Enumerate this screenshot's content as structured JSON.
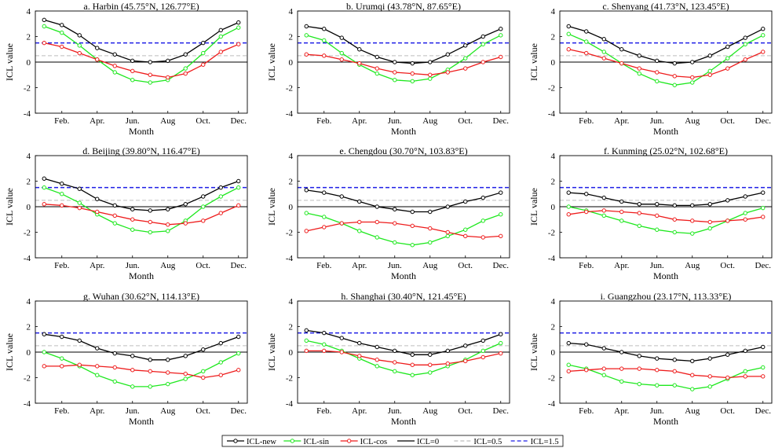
{
  "chart_data": {
    "type": "line",
    "months": [
      "Jan",
      "Feb",
      "Mar",
      "Apr",
      "May",
      "Jun",
      "Jul",
      "Aug",
      "Sep",
      "Oct",
      "Nov",
      "Dec"
    ],
    "x_tick_labels": [
      "Feb.",
      "Apr.",
      "Jun.",
      "Aug",
      "Oct.",
      "Dec."
    ],
    "x_tick_months": [
      2,
      4,
      6,
      8,
      10,
      12
    ],
    "xlim": [
      0.5,
      12.5
    ],
    "ylim": [
      -4,
      4
    ],
    "y_ticks": [
      -4,
      -2,
      0,
      2,
      4
    ],
    "xlabel": "Month",
    "ylabel": "ICL value",
    "reference_lines": [
      {
        "name": "ICL=0",
        "value": 0,
        "color": "#000000",
        "style": "solid"
      },
      {
        "name": "ICL=0.5",
        "value": 0.5,
        "color": "#bdbdbd",
        "style": "dashed"
      },
      {
        "name": "ICL=1.5",
        "value": 1.5,
        "color": "#1f1fe6",
        "style": "dashed"
      }
    ],
    "series_styles": [
      {
        "key": "new",
        "name": "ICL-new",
        "color": "#000000"
      },
      {
        "key": "sin",
        "name": "ICL-sin",
        "color": "#1ee81e"
      },
      {
        "key": "cos",
        "name": "ICL-cos",
        "color": "#ee1c1c"
      }
    ],
    "legend": {
      "placement": "bottom-center",
      "entries": [
        "ICL-new",
        "ICL-sin",
        "ICL-cos",
        "ICL=0",
        "ICL=0.5",
        "ICL=1.5"
      ]
    },
    "panels": [
      {
        "title": "a. Harbin (45.75°N, 126.77°E)",
        "series": {
          "new": [
            3.3,
            2.9,
            2.1,
            1.1,
            0.6,
            0.1,
            0.0,
            0.1,
            0.6,
            1.5,
            2.5,
            3.1
          ],
          "sin": [
            2.8,
            2.3,
            1.3,
            0.2,
            -0.8,
            -1.4,
            -1.6,
            -1.4,
            -0.5,
            0.7,
            2.0,
            2.7
          ],
          "cos": [
            1.5,
            1.2,
            0.7,
            0.2,
            -0.3,
            -0.7,
            -1.0,
            -1.2,
            -0.9,
            -0.2,
            0.8,
            1.4
          ]
        }
      },
      {
        "title": "b. Urumqi (43.78°N, 87.65°E)",
        "series": {
          "new": [
            2.8,
            2.6,
            1.9,
            1.0,
            0.4,
            0.0,
            -0.1,
            0.0,
            0.6,
            1.3,
            2.0,
            2.6
          ],
          "sin": [
            2.1,
            1.7,
            0.7,
            -0.2,
            -0.9,
            -1.4,
            -1.5,
            -1.3,
            -0.6,
            0.3,
            1.4,
            2.1
          ],
          "cos": [
            0.6,
            0.5,
            0.2,
            -0.1,
            -0.5,
            -0.8,
            -0.9,
            -1.0,
            -0.8,
            -0.5,
            0.0,
            0.4
          ]
        }
      },
      {
        "title": "c. Shenyang (41.73°N, 123.45°E)",
        "series": {
          "new": [
            2.8,
            2.4,
            1.8,
            1.0,
            0.5,
            0.1,
            -0.1,
            0.0,
            0.5,
            1.2,
            1.9,
            2.6
          ],
          "sin": [
            2.2,
            1.6,
            0.8,
            -0.1,
            -0.9,
            -1.5,
            -1.8,
            -1.6,
            -0.7,
            0.3,
            1.4,
            2.1
          ],
          "cos": [
            1.0,
            0.7,
            0.3,
            -0.1,
            -0.5,
            -0.8,
            -1.1,
            -1.2,
            -1.0,
            -0.5,
            0.2,
            0.8
          ]
        }
      },
      {
        "title": "d. Beijing (39.80°N, 116.47°E)",
        "series": {
          "new": [
            2.2,
            1.8,
            1.4,
            0.6,
            0.1,
            -0.2,
            -0.3,
            -0.2,
            0.2,
            0.8,
            1.5,
            2.0
          ],
          "sin": [
            1.5,
            1.0,
            0.3,
            -0.6,
            -1.3,
            -1.8,
            -2.0,
            -1.9,
            -1.1,
            0.0,
            0.8,
            1.5
          ],
          "cos": [
            0.2,
            0.1,
            -0.1,
            -0.4,
            -0.7,
            -1.0,
            -1.2,
            -1.4,
            -1.3,
            -1.1,
            -0.5,
            0.1
          ]
        }
      },
      {
        "title": "e. Chengdou (30.70°N, 103.83°E)",
        "series": {
          "new": [
            1.3,
            1.1,
            0.8,
            0.4,
            0.0,
            -0.2,
            -0.4,
            -0.4,
            0.0,
            0.4,
            0.7,
            1.1
          ],
          "sin": [
            -0.5,
            -0.8,
            -1.3,
            -1.9,
            -2.4,
            -2.8,
            -3.0,
            -2.8,
            -2.3,
            -1.8,
            -1.1,
            -0.6
          ],
          "cos": [
            -1.9,
            -1.6,
            -1.3,
            -1.2,
            -1.2,
            -1.3,
            -1.5,
            -1.7,
            -2.0,
            -2.3,
            -2.4,
            -2.3
          ]
        }
      },
      {
        "title": "f. Kunming (25.02°N, 102.68°E)",
        "series": {
          "new": [
            1.1,
            1.0,
            0.7,
            0.4,
            0.2,
            0.2,
            0.1,
            0.1,
            0.2,
            0.5,
            0.8,
            1.1
          ],
          "sin": [
            0.0,
            -0.3,
            -0.7,
            -1.1,
            -1.5,
            -1.8,
            -2.0,
            -2.1,
            -1.7,
            -1.1,
            -0.5,
            -0.1
          ],
          "cos": [
            -0.6,
            -0.4,
            -0.3,
            -0.4,
            -0.5,
            -0.7,
            -1.0,
            -1.1,
            -1.2,
            -1.1,
            -1.0,
            -0.8
          ]
        }
      },
      {
        "title": "g. Wuhan (30.62°N, 114.13°E)",
        "series": {
          "new": [
            1.4,
            1.2,
            0.9,
            0.3,
            -0.1,
            -0.3,
            -0.6,
            -0.6,
            -0.3,
            0.2,
            0.7,
            1.2
          ],
          "sin": [
            0.0,
            -0.5,
            -1.1,
            -1.8,
            -2.3,
            -2.7,
            -2.7,
            -2.5,
            -2.1,
            -1.5,
            -0.8,
            -0.1
          ],
          "cos": [
            -1.1,
            -1.1,
            -1.0,
            -1.1,
            -1.2,
            -1.4,
            -1.5,
            -1.6,
            -1.7,
            -2.0,
            -1.8,
            -1.4
          ]
        }
      },
      {
        "title": "h. Shanghai (30.40°N, 121.45°E)",
        "series": {
          "new": [
            1.7,
            1.5,
            1.1,
            0.7,
            0.4,
            0.1,
            -0.2,
            -0.2,
            0.1,
            0.5,
            0.9,
            1.4
          ],
          "sin": [
            0.9,
            0.6,
            0.1,
            -0.5,
            -1.1,
            -1.5,
            -1.8,
            -1.6,
            -1.1,
            -0.6,
            0.1,
            0.7
          ],
          "cos": [
            0.1,
            0.1,
            0.0,
            -0.3,
            -0.6,
            -0.8,
            -1.0,
            -1.0,
            -0.9,
            -0.7,
            -0.4,
            -0.1
          ]
        }
      },
      {
        "title": "i. Guangzhou (23.17°N, 113.33°E)",
        "series": {
          "new": [
            0.7,
            0.6,
            0.3,
            0.0,
            -0.3,
            -0.5,
            -0.6,
            -0.7,
            -0.5,
            -0.2,
            0.1,
            0.4
          ],
          "sin": [
            -1.0,
            -1.3,
            -1.8,
            -2.3,
            -2.5,
            -2.6,
            -2.6,
            -2.9,
            -2.7,
            -2.1,
            -1.5,
            -1.2
          ],
          "cos": [
            -1.5,
            -1.4,
            -1.3,
            -1.3,
            -1.3,
            -1.4,
            -1.5,
            -1.8,
            -1.9,
            -2.0,
            -1.9,
            -1.9
          ]
        }
      }
    ]
  }
}
